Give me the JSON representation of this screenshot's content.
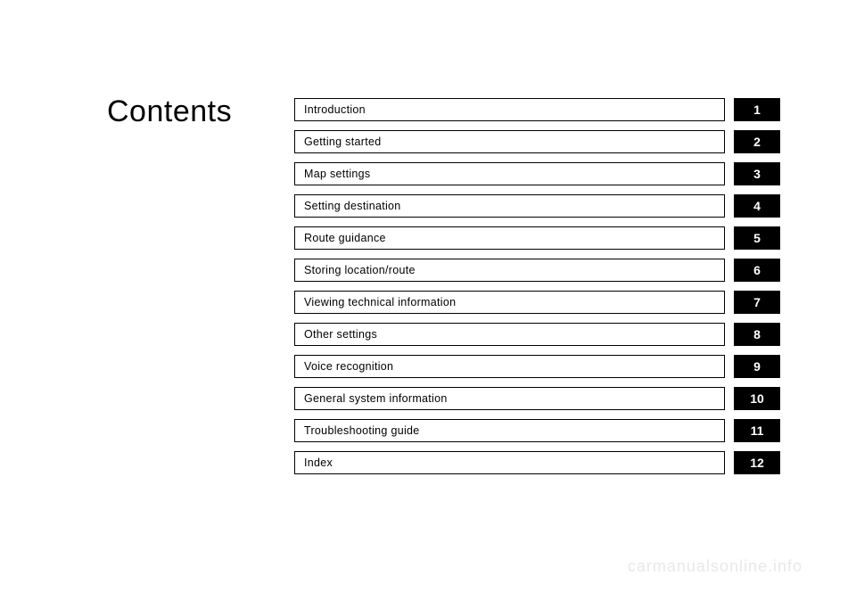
{
  "title": "Contents",
  "toc": [
    {
      "label": "Introduction",
      "num": "1"
    },
    {
      "label": "Getting started",
      "num": "2"
    },
    {
      "label": "Map settings",
      "num": "3"
    },
    {
      "label": "Setting destination",
      "num": "4"
    },
    {
      "label": "Route guidance",
      "num": "5"
    },
    {
      "label": "Storing location/route",
      "num": "6"
    },
    {
      "label": "Viewing technical information",
      "num": "7"
    },
    {
      "label": "Other settings",
      "num": "8"
    },
    {
      "label": "Voice recognition",
      "num": "9"
    },
    {
      "label": "General system information",
      "num": "10"
    },
    {
      "label": "Troubleshooting guide",
      "num": "11"
    },
    {
      "label": "Index",
      "num": "12"
    }
  ],
  "watermark": "carmanualsonline.info",
  "colors": {
    "background": "#ffffff",
    "text": "#000000",
    "tab_bg": "#000000",
    "tab_text": "#ffffff",
    "border": "#000000",
    "watermark": "#e8e8e8"
  }
}
